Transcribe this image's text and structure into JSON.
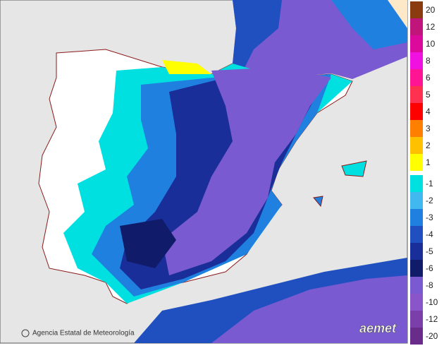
{
  "legend": {
    "items": [
      {
        "label": "20",
        "color": "#8a3c10"
      },
      {
        "label": "12",
        "color": "#c0157a"
      },
      {
        "label": "10",
        "color": "#dc0a9c"
      },
      {
        "label": "8",
        "color": "#f010e0"
      },
      {
        "label": "6",
        "color": "#ff1493"
      },
      {
        "label": "5",
        "color": "#ff3050"
      },
      {
        "label": "4",
        "color": "#ff0000"
      },
      {
        "label": "3",
        "color": "#ff8000"
      },
      {
        "label": "2",
        "color": "#ffc000"
      },
      {
        "label": "1",
        "color": "#ffff00"
      },
      {
        "label": "-1",
        "color": "#00e0e0"
      },
      {
        "label": "-2",
        "color": "#40b8f0"
      },
      {
        "label": "-3",
        "color": "#2080e0"
      },
      {
        "label": "-4",
        "color": "#2050c0"
      },
      {
        "label": "-5",
        "color": "#1a2e9a"
      },
      {
        "label": "-6",
        "color": "#101c6a"
      },
      {
        "label": "-8",
        "color": "#7a5ad0"
      },
      {
        "label": "-10",
        "color": "#8a55c8"
      },
      {
        "label": "-12",
        "color": "#7a3fa8"
      },
      {
        "label": "-20",
        "color": "#6a2c8a"
      }
    ]
  },
  "credit": "Agencia Estatal de Meteorología",
  "logo": "aemet"
}
